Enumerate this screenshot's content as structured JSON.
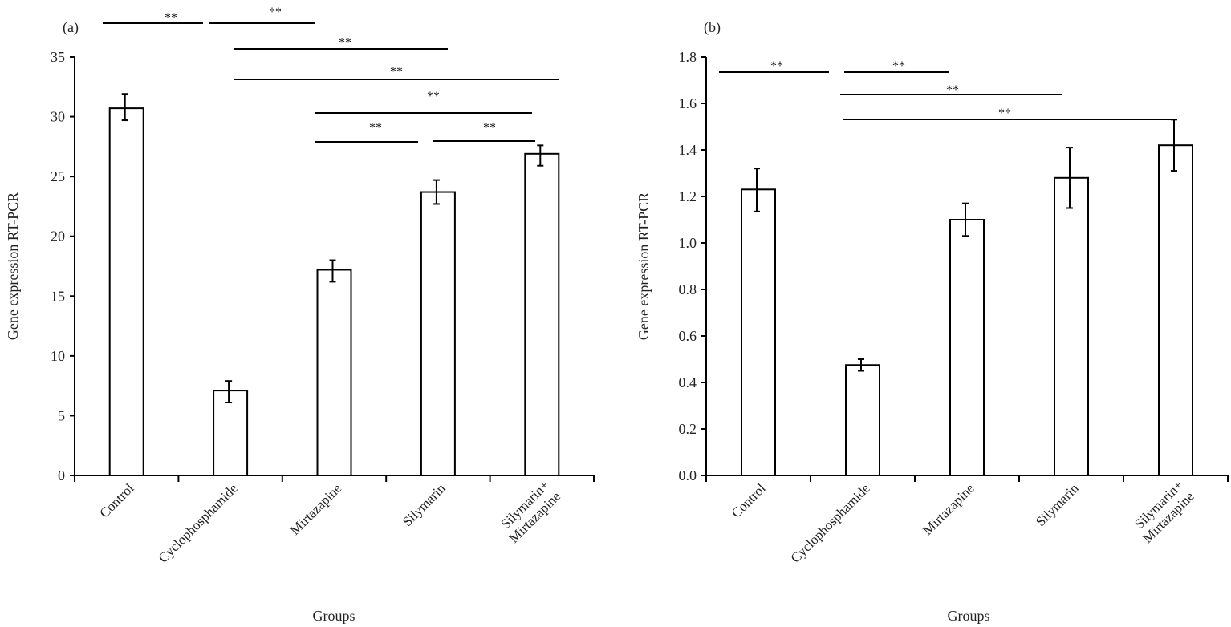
{
  "chart_data": [
    {
      "type": "bar",
      "panel_label": "(a)",
      "categories": [
        "Control",
        "Cyclophosphamide",
        "Mirtazapine",
        "Silymarin",
        [
          "Silymarin+",
          "Mirtazapine"
        ]
      ],
      "values": [
        30.7,
        7.1,
        17.2,
        23.7,
        26.9
      ],
      "error_low": [
        29.7,
        6.1,
        16.2,
        22.7,
        25.9
      ],
      "error_high": [
        31.9,
        7.9,
        18.0,
        24.7,
        27.6
      ],
      "xlabel": "Groups",
      "ylabel": "Gene expression RT-PCR",
      "ylim": [
        0,
        35
      ],
      "yticks": [
        "0",
        "5",
        "10",
        "15",
        "20",
        "25",
        "30",
        "35"
      ],
      "grid": false,
      "significance": [
        {
          "from": "Control",
          "to": "Cyclophosphamide",
          "label": "**"
        },
        {
          "from": "Cyclophosphamide",
          "to": "Mirtazapine",
          "label": "**"
        },
        {
          "from": "Cyclophosphamide",
          "to": "Silymarin",
          "label": "**"
        },
        {
          "from": "Cyclophosphamide",
          "to": "Silymarin+Mirtazapine",
          "label": "**"
        },
        {
          "from": "Mirtazapine",
          "to": "Silymarin+Mirtazapine",
          "label": "**"
        },
        {
          "from": "Mirtazapine",
          "to": "Silymarin",
          "label": "**"
        },
        {
          "from": "Silymarin",
          "to": "Silymarin+Mirtazapine",
          "label": "**"
        }
      ],
      "colors": {
        "bar_fill": "#ffffff",
        "stroke": "#000000"
      }
    },
    {
      "type": "bar",
      "panel_label": "(b)",
      "categories": [
        "Control",
        "Cyclophosphamide",
        "Mirtazapine",
        "Silymarin",
        [
          "Silymarin+",
          "Mirtazapine"
        ]
      ],
      "values": [
        1.23,
        0.475,
        1.1,
        1.28,
        1.42
      ],
      "error_low": [
        1.135,
        0.45,
        1.03,
        1.15,
        1.31
      ],
      "error_high": [
        1.32,
        0.5,
        1.17,
        1.41,
        1.53
      ],
      "xlabel": "Groups",
      "ylabel": "Gene expression RT-PCR",
      "ylim": [
        0,
        1.8
      ],
      "yticks": [
        "0.0",
        "0.2",
        "0.4",
        "0.6",
        "0.8",
        "1.0",
        "1.2",
        "1.4",
        "1.6",
        "1.8"
      ],
      "grid": false,
      "significance": [
        {
          "from": "Control",
          "to": "Cyclophosphamide",
          "label": "**"
        },
        {
          "from": "Cyclophosphamide",
          "to": "Mirtazapine",
          "label": "**"
        },
        {
          "from": "Cyclophosphamide",
          "to": "Silymarin",
          "label": "**"
        },
        {
          "from": "Cyclophosphamide",
          "to": "Silymarin+Mirtazapine",
          "label": "**"
        }
      ],
      "colors": {
        "bar_fill": "#ffffff",
        "stroke": "#000000"
      }
    }
  ]
}
